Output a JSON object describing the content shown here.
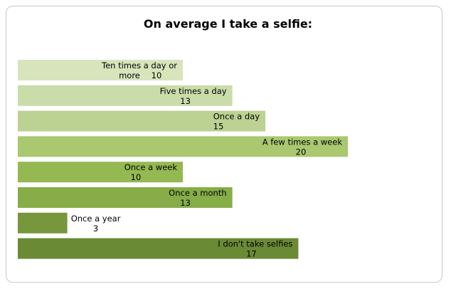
{
  "chart_data": {
    "type": "bar",
    "orientation": "horizontal",
    "title": "On average I take a selfie:",
    "xlabel": "",
    "ylabel": "",
    "xlim": [
      0,
      24
    ],
    "grid": false,
    "legend": "none",
    "categories": [
      "Ten times a day or more",
      "Five times a day",
      "Once a day",
      "A few times a week",
      "Once a week",
      "Once a month",
      "Once a year",
      "I don't take selfies"
    ],
    "values": [
      10,
      13,
      15,
      20,
      10,
      13,
      3,
      17
    ],
    "colors": [
      "#d8e4bc",
      "#cadcaa",
      "#bbd293",
      "#a9c870",
      "#94b952",
      "#86ad48",
      "#76973c",
      "#6a8a36"
    ]
  }
}
